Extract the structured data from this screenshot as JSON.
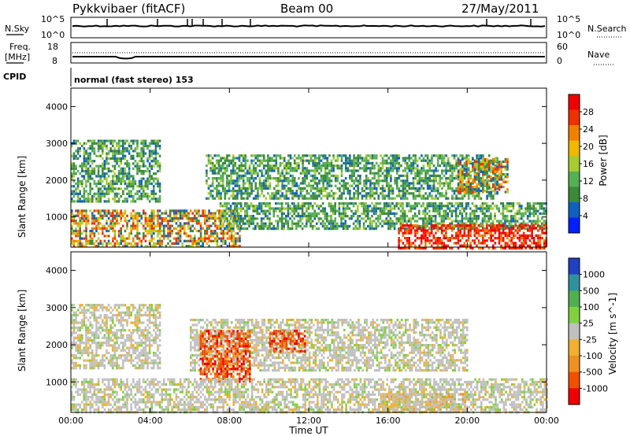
{
  "header": {
    "station": "Pykkvibaer (fitACF)",
    "beam": "Beam 00",
    "date": "27/May/2011"
  },
  "nsky_panel": {
    "left_label": "N.Sky",
    "left_ticks": [
      "10^5",
      "10^0"
    ],
    "right_label": "N.Search",
    "right_ticks": [
      "10^5",
      "10^0"
    ]
  },
  "freq_panel": {
    "left_label_1": "Freq.",
    "left_label_2": "[MHz]",
    "left_ticks": [
      "18",
      "8"
    ],
    "right_label": "Nave",
    "right_ticks": [
      "60",
      "0"
    ]
  },
  "cpid": {
    "label": "CPID",
    "text": "normal (fast stereo) 153"
  },
  "chart_data": [
    {
      "type": "heatmap",
      "name": "power",
      "ylabel": "Slant Range [km]",
      "ylim": [
        180,
        4500
      ],
      "yticks": [
        "4000",
        "3000",
        "2000",
        "1000"
      ],
      "xlim_hours": [
        0,
        24
      ],
      "colorbar": {
        "label": "Power [dB]",
        "ticks": [
          "28",
          "24",
          "20",
          "16",
          "12",
          "8",
          "4"
        ],
        "colors": [
          "#0020ff",
          "#1060c0",
          "#3a8a3a",
          "#55b055",
          "#a8cc30",
          "#f0b800",
          "#f08000",
          "#f03000",
          "#f00000"
        ]
      },
      "regions": [
        {
          "t0": 0.0,
          "t1": 4.5,
          "r0": 1400,
          "r1": 3100,
          "level": "medium"
        },
        {
          "t0": 0.0,
          "t1": 8.5,
          "r0": 180,
          "r1": 1200,
          "level": "high"
        },
        {
          "t0": 6.8,
          "t1": 21.5,
          "r0": 1500,
          "r1": 2700,
          "level": "medium"
        },
        {
          "t0": 7.5,
          "t1": 24.0,
          "r0": 700,
          "r1": 1400,
          "level": "medium"
        },
        {
          "t0": 16.5,
          "t1": 24.0,
          "r0": 180,
          "r1": 800,
          "level": "very-high"
        },
        {
          "t0": 19.5,
          "t1": 22.0,
          "r0": 1700,
          "r1": 2600,
          "level": "high"
        }
      ]
    },
    {
      "type": "heatmap",
      "name": "velocity",
      "ylabel": "Slant Range [km]",
      "ylim": [
        180,
        4500
      ],
      "yticks": [
        "4000",
        "3000",
        "2000",
        "1000"
      ],
      "xlim_hours": [
        0,
        24
      ],
      "xticks": [
        "00:00",
        "04:00",
        "08:00",
        "12:00",
        "16:00",
        "20:00",
        "00:00"
      ],
      "xlabel": "Time UT",
      "colorbar": {
        "label": "Velocity [m s^-1]",
        "ticks": [
          "1000",
          "500",
          "100",
          "25",
          "-25",
          "-100",
          "-500",
          "-1000"
        ],
        "colors": [
          "#2040c0",
          "#3090a0",
          "#50b050",
          "#80d040",
          "#c0c0c0",
          "#f0b030",
          "#f09020",
          "#f05000",
          "#f00000"
        ]
      },
      "regions": [
        {
          "t0": 0.0,
          "t1": 4.5,
          "r0": 1400,
          "r1": 3100,
          "level": "low"
        },
        {
          "t0": 6.0,
          "t1": 20.0,
          "r0": 1300,
          "r1": 2700,
          "level": "low"
        },
        {
          "t0": 6.5,
          "t1": 9.0,
          "r0": 1000,
          "r1": 2400,
          "level": "negative-high"
        },
        {
          "t0": 10.0,
          "t1": 11.8,
          "r0": 1800,
          "r1": 2400,
          "level": "negative-high"
        },
        {
          "t0": 15.5,
          "t1": 20.0,
          "r0": 180,
          "r1": 700,
          "level": "negative-medium"
        },
        {
          "t0": 0.0,
          "t1": 24.0,
          "r0": 180,
          "r1": 1100,
          "level": "low"
        }
      ]
    }
  ]
}
